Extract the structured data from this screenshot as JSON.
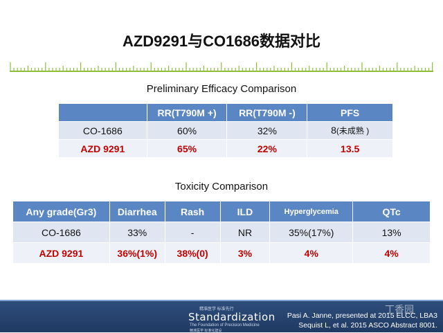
{
  "title": "AZD9291与CO1686数据对比",
  "efficacy": {
    "title": "Preliminary Efficacy Comparison",
    "headers": [
      "",
      "RR(T790M +)",
      "RR(T790M -)",
      "PFS"
    ],
    "rows": [
      [
        "CO-1686",
        "60%",
        "32%",
        "8",
        "(未成熟 )"
      ],
      [
        "AZD 9291",
        "65%",
        "22%",
        "13.5"
      ]
    ]
  },
  "toxicity": {
    "title": "Toxicity  Comparison",
    "headers": [
      "Any grade(Gr3)",
      "Diarrhea",
      "Rash",
      "ILD",
      "Hyperglycemia",
      "QTc"
    ],
    "rows": [
      [
        "CO-1686",
        "33%",
        "-",
        "NR",
        "35%(17%)",
        "13%"
      ],
      [
        "AZD 9291",
        "36%(1%)",
        "38%(0)",
        "3%",
        "4%",
        "4%"
      ]
    ]
  },
  "footer": {
    "logo_top": "精准医学 标准先行",
    "logo": "Standardization",
    "logo_sub": "The Foundation of Precision Medicine",
    "logo_cn": "精准医学 标准化建设",
    "citation_1": "Pasi A. Janne, presented at 2015 ELCC, LBA3",
    "citation_2": "Sequist L, et al. 2015 ASCO Abstract 8001.",
    "watermark": "丁香园"
  },
  "colors": {
    "header_blue": "#5a86c4",
    "row_light": "#dfe6f2",
    "highlight_red": "#c00000",
    "ruler_green": "#8fbf3a",
    "footer_navy": "#243f68"
  }
}
